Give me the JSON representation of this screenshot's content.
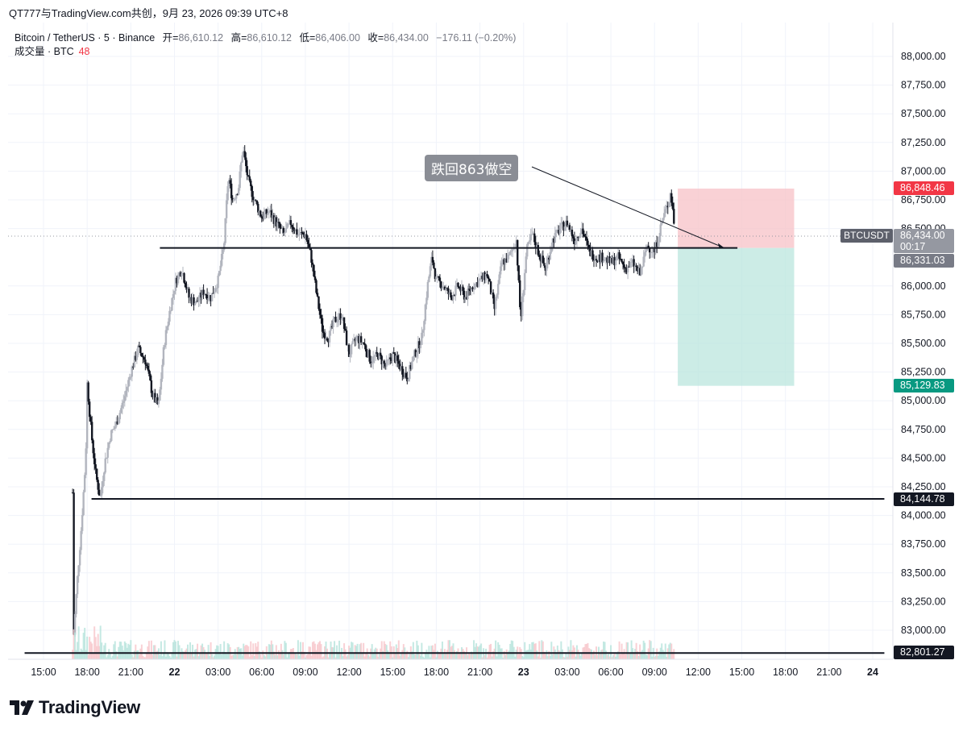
{
  "header": {
    "title": "QT777与TradingView.com共创，9月 23, 2026 09:39 UTC+8"
  },
  "legend": {
    "symbol": "Bitcoin / TetherUS · 5 · Binance",
    "open_label": "开=",
    "open": "86,610.12",
    "high_label": "高=",
    "high": "86,610.12",
    "low_label": "低=",
    "low": "86,406.00",
    "close_label": "收=",
    "close": "86,434.00",
    "change": "−176.11 (−0.20%)",
    "volume_label": "成交量 · BTC",
    "volume_value": "48"
  },
  "annotation": {
    "text": "跌回863做空"
  },
  "tags": {
    "symbol": "BTCUSDT",
    "current_price": "86,434.00",
    "countdown": "00:17",
    "stop_loss": "86,848.46",
    "entry": "86,331.03",
    "take_profit": "85,129.83",
    "support_1": "84,144.78",
    "support_2": "82,801.27"
  },
  "colors": {
    "stop_zone": "#f7c5cb",
    "target_zone": "#b7e4dc",
    "stop_tag": "#f23645",
    "entry_tag": "#787b86",
    "target_tag": "#089981",
    "line_tag": "#131722",
    "candle": "#131722",
    "candle_up": "#b2b5be"
  },
  "footer": {
    "brand": "TradingView",
    "logo_icon": "tradingview-logo-icon"
  },
  "chart_data": {
    "type": "candlestick",
    "symbol": "Bitcoin / TetherUS",
    "interval": "5",
    "exchange": "Binance",
    "y_ticks": [
      "88,000.00",
      "87,750.00",
      "87,500.00",
      "87,250.00",
      "87,000.00",
      "86,750.00",
      "86,500.00",
      "86,000.00",
      "85,750.00",
      "85,500.00",
      "85,250.00",
      "85,000.00",
      "84,750.00",
      "84,500.00",
      "84,250.00",
      "84,000.00",
      "83,750.00",
      "83,500.00",
      "83,250.00",
      "83,000.00"
    ],
    "y_tick_values": [
      88000,
      87750,
      87500,
      87250,
      87000,
      86750,
      86500,
      86000,
      85750,
      85500,
      85250,
      85000,
      84750,
      84500,
      84250,
      84000,
      83750,
      83500,
      83250,
      83000
    ],
    "x_ticks": [
      "15:00",
      "18:00",
      "21:00",
      "22",
      "03:00",
      "06:00",
      "09:00",
      "12:00",
      "15:00",
      "18:00",
      "21:00",
      "23",
      "03:00",
      "06:00",
      "09:00",
      "12:00",
      "15:00",
      "18:00",
      "21:00",
      "24"
    ],
    "x_tick_hours": [
      15,
      18,
      21,
      24,
      27,
      30,
      33,
      36,
      39,
      42,
      45,
      48,
      51,
      54,
      57,
      60,
      63,
      66,
      69,
      72
    ],
    "price_range": [
      82730,
      88300
    ],
    "time_range_hours": [
      13.7,
      72.8
    ],
    "price_path": [
      [
        17.0,
        84200
      ],
      [
        17.05,
        82900
      ],
      [
        17.3,
        83400
      ],
      [
        17.6,
        83900
      ],
      [
        17.9,
        84500
      ],
      [
        18.0,
        85150
      ],
      [
        18.3,
        84700
      ],
      [
        18.6,
        84350
      ],
      [
        18.9,
        84150
      ],
      [
        19.2,
        84450
      ],
      [
        19.6,
        84700
      ],
      [
        20.0,
        84800
      ],
      [
        20.5,
        85000
      ],
      [
        21.0,
        85250
      ],
      [
        21.5,
        85450
      ],
      [
        22.0,
        85350
      ],
      [
        22.5,
        85050
      ],
      [
        22.9,
        84950
      ],
      [
        23.3,
        85500
      ],
      [
        23.7,
        85800
      ],
      [
        24.1,
        86050
      ],
      [
        24.5,
        86150
      ],
      [
        25.0,
        85900
      ],
      [
        25.5,
        85850
      ],
      [
        26.0,
        85950
      ],
      [
        26.5,
        85900
      ],
      [
        27.0,
        86050
      ],
      [
        27.4,
        86350
      ],
      [
        27.7,
        86950
      ],
      [
        28.0,
        86750
      ],
      [
        28.4,
        86850
      ],
      [
        28.7,
        87200
      ],
      [
        29.1,
        86900
      ],
      [
        29.5,
        86750
      ],
      [
        30.0,
        86600
      ],
      [
        30.5,
        86650
      ],
      [
        31.0,
        86550
      ],
      [
        31.5,
        86450
      ],
      [
        32.0,
        86550
      ],
      [
        32.5,
        86450
      ],
      [
        33.0,
        86450
      ],
      [
        33.4,
        86250
      ],
      [
        33.8,
        85900
      ],
      [
        34.2,
        85600
      ],
      [
        34.6,
        85550
      ],
      [
        35.0,
        85700
      ],
      [
        35.5,
        85750
      ],
      [
        36.0,
        85400
      ],
      [
        36.5,
        85550
      ],
      [
        37.0,
        85500
      ],
      [
        37.5,
        85350
      ],
      [
        38.0,
        85400
      ],
      [
        38.5,
        85300
      ],
      [
        39.0,
        85400
      ],
      [
        39.5,
        85300
      ],
      [
        40.0,
        85200
      ],
      [
        40.5,
        85400
      ],
      [
        41.0,
        85550
      ],
      [
        41.4,
        86000
      ],
      [
        41.7,
        86250
      ],
      [
        42.0,
        86050
      ],
      [
        42.5,
        86000
      ],
      [
        43.0,
        85900
      ],
      [
        43.5,
        86000
      ],
      [
        44.0,
        85900
      ],
      [
        44.5,
        86000
      ],
      [
        45.0,
        86050
      ],
      [
        45.5,
        86100
      ],
      [
        46.0,
        85800
      ],
      [
        46.5,
        86200
      ],
      [
        47.0,
        86250
      ],
      [
        47.5,
        86400
      ],
      [
        47.8,
        85700
      ],
      [
        48.2,
        86300
      ],
      [
        48.6,
        86450
      ],
      [
        49.0,
        86300
      ],
      [
        49.5,
        86150
      ],
      [
        50.0,
        86400
      ],
      [
        50.5,
        86500
      ],
      [
        51.0,
        86550
      ],
      [
        51.5,
        86400
      ],
      [
        52.0,
        86500
      ],
      [
        52.5,
        86300
      ],
      [
        53.0,
        86250
      ],
      [
        53.5,
        86250
      ],
      [
        54.0,
        86200
      ],
      [
        54.5,
        86250
      ],
      [
        55.0,
        86150
      ],
      [
        55.5,
        86200
      ],
      [
        56.0,
        86100
      ],
      [
        56.5,
        86350
      ],
      [
        57.0,
        86300
      ],
      [
        57.3,
        86450
      ],
      [
        57.6,
        86600
      ],
      [
        57.9,
        86700
      ],
      [
        58.1,
        86820
      ],
      [
        58.3,
        86610
      ],
      [
        58.4,
        86434
      ]
    ],
    "trendlines": [
      {
        "label": "resistance",
        "from_hour": 23.0,
        "to_hour": 62.7,
        "price": 86331.03
      },
      {
        "label": "support",
        "from_hour": 18.3,
        "to_hour": 72.8,
        "price": 84144.78
      },
      {
        "label": "support",
        "from_hour": 13.7,
        "to_hour": 72.8,
        "price": 82801.27
      }
    ],
    "position": {
      "type": "short",
      "entry": 86331.03,
      "stop": 86848.46,
      "target": 85129.83,
      "from_hour": 58.6,
      "to_hour": 66.6
    },
    "annotation_arrow": {
      "from_hour": 49.0,
      "from_price": 87000,
      "to_hour": 61.8,
      "to_price": 86331.03
    }
  }
}
